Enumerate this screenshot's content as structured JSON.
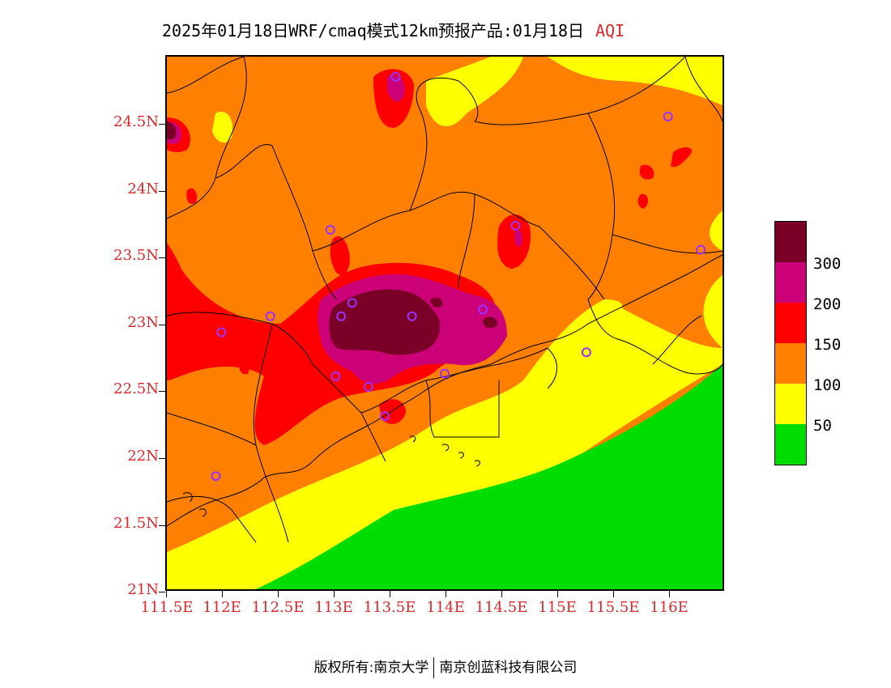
{
  "title": {
    "text": "2025年01月18日WRF/cmaq模式12km预报产品:01月18日",
    "variable": "AQI"
  },
  "axes": {
    "lat_ticks": [
      "21N",
      "21.5N",
      "22N",
      "22.5N",
      "23N",
      "23.5N",
      "24N",
      "24.5N"
    ],
    "lon_ticks": [
      "111.5E",
      "112E",
      "112.5E",
      "113E",
      "113.5E",
      "114E",
      "114.5E",
      "115E",
      "115.5E",
      "116E"
    ]
  },
  "legend": {
    "labels": [
      "50",
      "100",
      "150",
      "200",
      "300"
    ],
    "colors": [
      "#00dd00",
      "#ffff00",
      "#ff8000",
      "#ff0000",
      "#cc0077",
      "#7a0027"
    ]
  },
  "map": {
    "extent": {
      "lon": [
        111.5,
        116.6
      ],
      "lat": [
        21.0,
        25.0
      ]
    },
    "stations": [
      {
        "lon": 113.6,
        "lat": 24.85
      },
      {
        "lon": 116.1,
        "lat": 24.55
      },
      {
        "lon": 113.0,
        "lat": 23.7
      },
      {
        "lon": 114.7,
        "lat": 23.73
      },
      {
        "lon": 116.4,
        "lat": 23.55
      },
      {
        "lon": 112.0,
        "lat": 22.93
      },
      {
        "lon": 112.45,
        "lat": 23.05
      },
      {
        "lon": 113.1,
        "lat": 23.05
      },
      {
        "lon": 113.2,
        "lat": 23.15
      },
      {
        "lon": 113.75,
        "lat": 23.05
      },
      {
        "lon": 114.4,
        "lat": 23.1
      },
      {
        "lon": 113.05,
        "lat": 22.6
      },
      {
        "lon": 113.35,
        "lat": 22.52
      },
      {
        "lon": 114.05,
        "lat": 22.62
      },
      {
        "lon": 113.5,
        "lat": 22.3
      },
      {
        "lon": 115.35,
        "lat": 22.78
      },
      {
        "lon": 111.95,
        "lat": 21.85
      }
    ]
  },
  "footer": {
    "copyright": "版权所有:南京大学",
    "company": "南京创蓝科技有限公司"
  }
}
